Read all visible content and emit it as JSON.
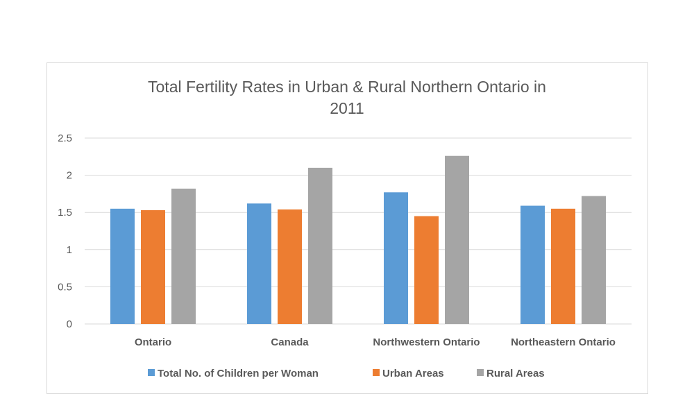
{
  "chart_data": {
    "type": "bar",
    "title_lines": [
      "Total Fertility Rates in Urban & Rural Northern Ontario in",
      "2011"
    ],
    "categories": [
      "Ontario",
      "Canada",
      "Northwestern Ontario",
      "Northeastern Ontario"
    ],
    "series": [
      {
        "name": "Total No. of Children per Woman",
        "color": "#5b9bd5",
        "values": [
          1.55,
          1.62,
          1.77,
          1.59
        ]
      },
      {
        "name": "Urban Areas",
        "color": "#ed7d31",
        "values": [
          1.53,
          1.54,
          1.45,
          1.55
        ]
      },
      {
        "name": "Rural Areas",
        "color": "#a5a5a5",
        "values": [
          1.82,
          2.1,
          2.26,
          1.72
        ]
      }
    ],
    "y_ticks": [
      "0",
      "0.5",
      "1",
      "1.5",
      "2",
      "2.5"
    ],
    "ylim": [
      0,
      2.5
    ],
    "grid": true,
    "legend_position": "bottom",
    "xlabel": "",
    "ylabel": ""
  }
}
